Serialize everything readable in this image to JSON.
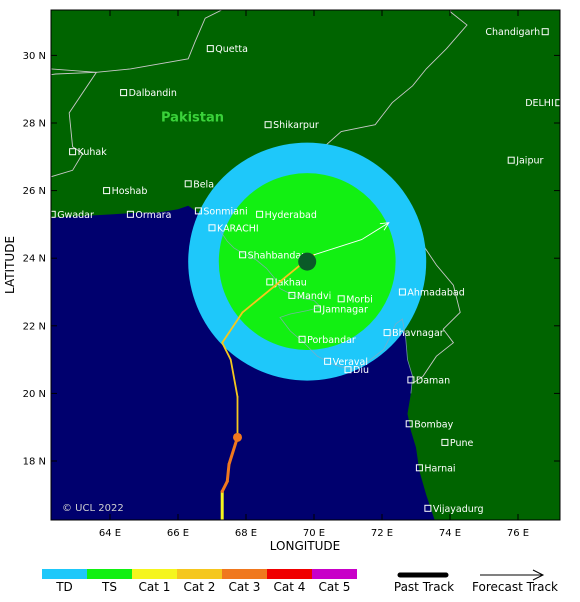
{
  "map": {
    "xlabel": "LONGITUDE",
    "ylabel": "LATITUDE",
    "lon_range": [
      62,
      75.5
    ],
    "lat_range": [
      16.2,
      31.5
    ],
    "lon_ticks": [
      64,
      66,
      68,
      70,
      72,
      74,
      76
    ],
    "lon_tick_labels": [
      "64 E",
      "66 E",
      "68 E",
      "70 E",
      "72 E",
      "74 E",
      "76 E"
    ],
    "lat_ticks": [
      18,
      20,
      22,
      24,
      26,
      28,
      30
    ],
    "lat_tick_labels": [
      "18 N",
      "20 N",
      "22 N",
      "24 N",
      "26 N",
      "28 N",
      "30 N"
    ],
    "country_label": "Pakistan",
    "copyright": "© UCL 2022",
    "colors": {
      "land": "#006400",
      "ocean": "#00006e",
      "border": "#c8c8c8",
      "td": "#1ec8fa",
      "ts": "#12f012"
    }
  },
  "cities": [
    {
      "name": "Quetta",
      "lon": 66.95,
      "lat": 30.2
    },
    {
      "name": "Chandigarh",
      "lon": 76.8,
      "lat": 30.7
    },
    {
      "name": "Dalbandin",
      "lon": 64.4,
      "lat": 28.9
    },
    {
      "name": "Shikarpur",
      "lon": 68.65,
      "lat": 27.95
    },
    {
      "name": "DELHI",
      "lon": 77.2,
      "lat": 28.6
    },
    {
      "name": "Kuhak",
      "lon": 62.9,
      "lat": 27.15
    },
    {
      "name": "Jaipur",
      "lon": 75.8,
      "lat": 26.9
    },
    {
      "name": "Hoshab",
      "lon": 63.9,
      "lat": 26.0
    },
    {
      "name": "Bela",
      "lon": 66.3,
      "lat": 26.2
    },
    {
      "name": "Gwadar",
      "lon": 62.3,
      "lat": 25.3
    },
    {
      "name": "Sonmiani",
      "lon": 66.6,
      "lat": 25.4
    },
    {
      "name": "Hyderabad",
      "lon": 68.4,
      "lat": 25.3
    },
    {
      "name": "Ormara",
      "lon": 64.6,
      "lat": 25.3
    },
    {
      "name": "KARACHI",
      "lon": 67.0,
      "lat": 24.9
    },
    {
      "name": "Shahbandar",
      "lon": 67.9,
      "lat": 24.1
    },
    {
      "name": "Jakhau",
      "lon": 68.7,
      "lat": 23.3
    },
    {
      "name": "Mandvi",
      "lon": 69.35,
      "lat": 22.9
    },
    {
      "name": "Morbi",
      "lon": 70.8,
      "lat": 22.8
    },
    {
      "name": "Ahmadabad",
      "lon": 72.6,
      "lat": 23.0
    },
    {
      "name": "Jamnagar",
      "lon": 70.1,
      "lat": 22.5
    },
    {
      "name": "Bhavnagar",
      "lon": 72.15,
      "lat": 21.8
    },
    {
      "name": "Porbandar",
      "lon": 69.65,
      "lat": 21.6
    },
    {
      "name": "Veraval",
      "lon": 70.4,
      "lat": 20.95
    },
    {
      "name": "Diu",
      "lon": 71.0,
      "lat": 20.7
    },
    {
      "name": "Daman",
      "lon": 72.85,
      "lat": 20.4
    },
    {
      "name": "Bombay",
      "lon": 72.8,
      "lat": 19.1
    },
    {
      "name": "Pune",
      "lon": 73.85,
      "lat": 18.55
    },
    {
      "name": "Harnai",
      "lon": 73.1,
      "lat": 17.8
    },
    {
      "name": "Vijayadurg",
      "lon": 73.35,
      "lat": 16.6
    }
  ],
  "storm": {
    "center": {
      "lon": 69.8,
      "lat": 23.9
    },
    "td_radius_deg": 3.5,
    "ts_radius_deg": 2.6,
    "past_track": [
      {
        "lon": 67.3,
        "lat": 15.8,
        "category": "Cat 1"
      },
      {
        "lon": 67.3,
        "lat": 17.1,
        "category": "Cat 1"
      },
      {
        "lon": 67.45,
        "lat": 17.4,
        "category": "Cat 3"
      },
      {
        "lon": 67.5,
        "lat": 17.9,
        "category": "Cat 3"
      },
      {
        "lon": 67.75,
        "lat": 18.7,
        "category": "Cat 3"
      },
      {
        "lon": 67.75,
        "lat": 19.9,
        "category": "Cat 2"
      },
      {
        "lon": 67.55,
        "lat": 21.0,
        "category": "Cat 2"
      },
      {
        "lon": 67.3,
        "lat": 21.5,
        "category": "Cat 2"
      },
      {
        "lon": 67.9,
        "lat": 22.4,
        "category": "Cat 2"
      },
      {
        "lon": 69.6,
        "lat": 23.8,
        "category": "Cat 2"
      },
      {
        "lon": 70.0,
        "lat": 24.1,
        "category": "Cat 2"
      }
    ],
    "forecast_track": [
      {
        "lon": 70.0,
        "lat": 24.1
      },
      {
        "lon": 71.4,
        "lat": 24.55
      },
      {
        "lon": 72.2,
        "lat": 25.05
      }
    ],
    "marker_point": {
      "lon": 67.75,
      "lat": 18.7
    }
  },
  "legend": {
    "categories": [
      {
        "label": "TD",
        "color": "#1ec8fa"
      },
      {
        "label": "TS",
        "color": "#12f012"
      },
      {
        "label": "Cat 1",
        "color": "#f5f51e"
      },
      {
        "label": "Cat 2",
        "color": "#f5c71e"
      },
      {
        "label": "Cat 3",
        "color": "#f0781e"
      },
      {
        "label": "Cat 4",
        "color": "#f00000"
      },
      {
        "label": "Cat 5",
        "color": "#c800c8"
      }
    ],
    "past_track_label": "Past Track",
    "forecast_track_label": "Forecast Track"
  }
}
